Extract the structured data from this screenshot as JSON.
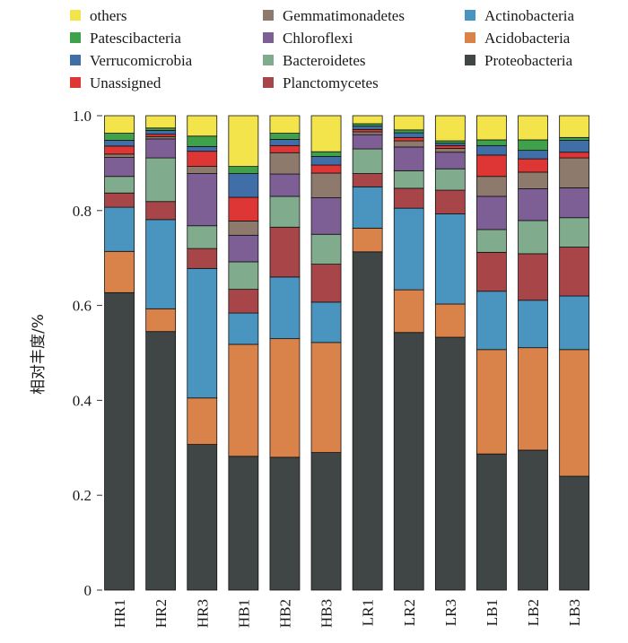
{
  "chart_data": {
    "type": "bar",
    "stacked": true,
    "ylabel": "相对丰度/%",
    "ylim": [
      0,
      1.0
    ],
    "y_ticks": [
      "0",
      "0.2",
      "0.4",
      "0.6",
      "0.8",
      "1.0"
    ],
    "y_tick_values": [
      0,
      0.2,
      0.4,
      0.6,
      0.8,
      1.0
    ],
    "legend_position": "top",
    "categories": [
      "HR1",
      "HR2",
      "HR3",
      "HB1",
      "HB2",
      "HB3",
      "LR1",
      "LR2",
      "LR3",
      "LB1",
      "LB2",
      "LB3"
    ],
    "series": [
      {
        "name": "Proteobacteria",
        "color": "#404545",
        "values": [
          0.627,
          0.545,
          0.307,
          0.282,
          0.28,
          0.29,
          0.713,
          0.543,
          0.533,
          0.287,
          0.295,
          0.24
        ]
      },
      {
        "name": "Acidobacteria",
        "color": "#d9824a",
        "values": [
          0.087,
          0.048,
          0.098,
          0.236,
          0.25,
          0.232,
          0.05,
          0.09,
          0.07,
          0.22,
          0.216,
          0.267
        ]
      },
      {
        "name": "Actinobacteria",
        "color": "#4a95c0",
        "values": [
          0.093,
          0.188,
          0.273,
          0.066,
          0.13,
          0.085,
          0.087,
          0.172,
          0.19,
          0.123,
          0.1,
          0.113
        ]
      },
      {
        "name": "Planctomycetes",
        "color": "#a84548",
        "values": [
          0.03,
          0.038,
          0.042,
          0.05,
          0.105,
          0.08,
          0.028,
          0.042,
          0.05,
          0.082,
          0.098,
          0.103
        ]
      },
      {
        "name": "Bacteroidetes",
        "color": "#80ab8c",
        "values": [
          0.035,
          0.092,
          0.048,
          0.058,
          0.065,
          0.063,
          0.052,
          0.037,
          0.045,
          0.048,
          0.07,
          0.062
        ]
      },
      {
        "name": "Chloroflexi",
        "color": "#7d5e95",
        "values": [
          0.04,
          0.04,
          0.11,
          0.056,
          0.047,
          0.077,
          0.03,
          0.05,
          0.035,
          0.07,
          0.067,
          0.063
        ]
      },
      {
        "name": "Gemmatimonadetes",
        "color": "#8d7a6c",
        "values": [
          0.007,
          0.005,
          0.015,
          0.03,
          0.045,
          0.052,
          0.006,
          0.013,
          0.008,
          0.042,
          0.035,
          0.063
        ]
      },
      {
        "name": "Unassigned",
        "color": "#de3535",
        "values": [
          0.017,
          0.005,
          0.032,
          0.05,
          0.015,
          0.017,
          0.005,
          0.007,
          0.006,
          0.045,
          0.028,
          0.012
        ]
      },
      {
        "name": "Verrucomicrobia",
        "color": "#3f6fa6",
        "values": [
          0.012,
          0.008,
          0.01,
          0.05,
          0.013,
          0.018,
          0.007,
          0.01,
          0.005,
          0.02,
          0.018,
          0.025
        ]
      },
      {
        "name": "Patescibacteria",
        "color": "#3fa14a",
        "values": [
          0.015,
          0.005,
          0.022,
          0.015,
          0.013,
          0.01,
          0.005,
          0.006,
          0.005,
          0.012,
          0.022,
          0.006
        ]
      },
      {
        "name": "others",
        "color": "#f2e44a",
        "values": [
          0.037,
          0.026,
          0.043,
          0.107,
          0.037,
          0.076,
          0.017,
          0.03,
          0.053,
          0.051,
          0.051,
          0.046
        ]
      }
    ]
  },
  "legend": [
    {
      "name": "others",
      "color": "#f2e44a"
    },
    {
      "name": "Gemmatimonadetes",
      "color": "#8d7a6c"
    },
    {
      "name": "Actinobacteria",
      "color": "#4a95c0"
    },
    {
      "name": "Patescibacteria",
      "color": "#3fa14a"
    },
    {
      "name": "Chloroflexi",
      "color": "#7d5e95"
    },
    {
      "name": "Acidobacteria",
      "color": "#d9824a"
    },
    {
      "name": "Verrucomicrobia",
      "color": "#3f6fa6"
    },
    {
      "name": "Bacteroidetes",
      "color": "#80ab8c"
    },
    {
      "name": "Proteobacteria",
      "color": "#404545"
    },
    {
      "name": "Unassigned",
      "color": "#de3535"
    },
    {
      "name": "Planctomycetes",
      "color": "#a84548"
    }
  ]
}
